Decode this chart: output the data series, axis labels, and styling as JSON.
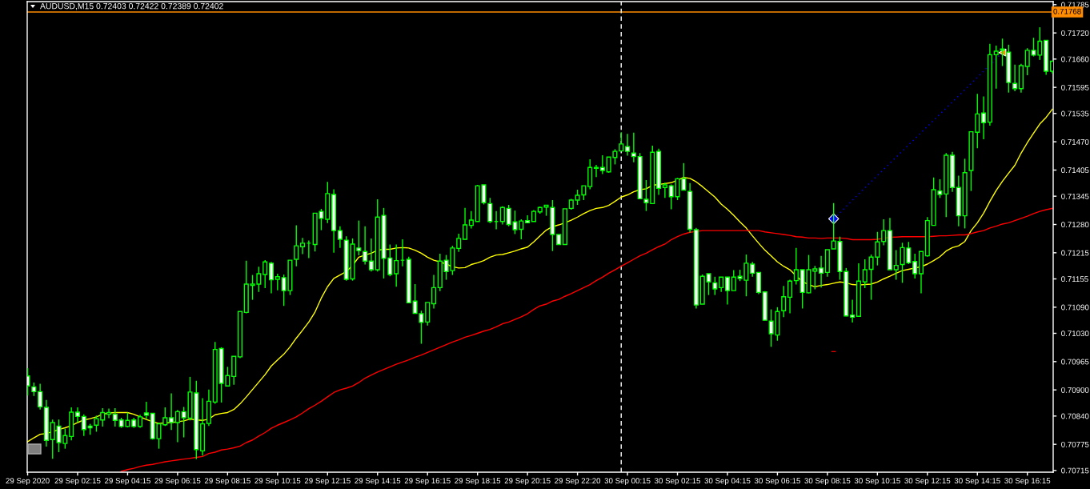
{
  "chart_data": {
    "type": "candlestick",
    "title": "AUDUSD,M15 0.72403 0.72422 0.72389 0.72402",
    "color": "#00ff00",
    "x": [
      "2020-09-29T00:15",
      "2020-09-29T00:30",
      "2020-09-29T00:45",
      "2020-09-29T01:00",
      "2020-09-29T01:15",
      "2020-09-29T01:30",
      "2020-09-29T01:45",
      "2020-09-29T02:00",
      "2020-09-29T02:15",
      "2020-09-29T02:30",
      "2020-09-29T02:45",
      "2020-09-29T03:00",
      "2020-09-29T03:15",
      "2020-09-29T03:30",
      "2020-09-29T03:45",
      "2020-09-29T04:00",
      "2020-09-29T04:15",
      "2020-09-29T04:30",
      "2020-09-29T04:45",
      "2020-09-29T05:00",
      "2020-09-29T05:15",
      "2020-09-29T05:30",
      "2020-09-29T05:45",
      "2020-09-29T06:00",
      "2020-09-29T06:15",
      "2020-09-29T06:30",
      "2020-09-29T06:45",
      "2020-09-29T07:00",
      "2020-09-29T07:15",
      "2020-09-29T07:30",
      "2020-09-29T07:45",
      "2020-09-29T08:00",
      "2020-09-29T08:15",
      "2020-09-29T08:30",
      "2020-09-29T08:45",
      "2020-09-29T09:00",
      "2020-09-29T09:15",
      "2020-09-29T09:30",
      "2020-09-29T09:45",
      "2020-09-29T10:00",
      "2020-09-29T10:15",
      "2020-09-29T10:30",
      "2020-09-29T10:45",
      "2020-09-29T11:00",
      "2020-09-29T11:15",
      "2020-09-29T11:30",
      "2020-09-29T11:45",
      "2020-09-29T12:00",
      "2020-09-29T12:15",
      "2020-09-29T12:30",
      "2020-09-29T12:45",
      "2020-09-29T13:00",
      "2020-09-29T13:15",
      "2020-09-29T13:30",
      "2020-09-29T13:45",
      "2020-09-29T14:00",
      "2020-09-29T14:15",
      "2020-09-29T14:30",
      "2020-09-29T14:45",
      "2020-09-29T15:00",
      "2020-09-29T15:15",
      "2020-09-29T15:30",
      "2020-09-29T15:45",
      "2020-09-29T16:00",
      "2020-09-29T16:15",
      "2020-09-29T16:30",
      "2020-09-29T16:45",
      "2020-09-29T17:00",
      "2020-09-29T17:15",
      "2020-09-29T17:30",
      "2020-09-29T17:45",
      "2020-09-29T18:00",
      "2020-09-29T18:15",
      "2020-09-29T18:30",
      "2020-09-29T18:45",
      "2020-09-29T19:00",
      "2020-09-29T19:15",
      "2020-09-29T19:30",
      "2020-09-29T19:45",
      "2020-09-29T20:00",
      "2020-09-29T20:15",
      "2020-09-29T20:30",
      "2020-09-29T20:45",
      "2020-09-29T21:00",
      "2020-09-29T21:15",
      "2020-09-29T21:30",
      "2020-09-29T21:45",
      "2020-09-29T22:00",
      "2020-09-29T22:15",
      "2020-09-29T22:30",
      "2020-09-29T22:45",
      "2020-09-29T23:00",
      "2020-09-29T23:15",
      "2020-09-29T23:30",
      "2020-09-29T23:45",
      "2020-09-30T00:00",
      "2020-09-30T00:15",
      "2020-09-30T00:30",
      "2020-09-30T00:45",
      "2020-09-30T01:00",
      "2020-09-30T01:15",
      "2020-09-30T01:30",
      "2020-09-30T01:45",
      "2020-09-30T02:00",
      "2020-09-30T02:15",
      "2020-09-30T02:30",
      "2020-09-30T02:45",
      "2020-09-30T03:00",
      "2020-09-30T03:15",
      "2020-09-30T03:30",
      "2020-09-30T03:45",
      "2020-09-30T04:00",
      "2020-09-30T04:15",
      "2020-09-30T04:30",
      "2020-09-30T04:45",
      "2020-09-30T05:00",
      "2020-09-30T05:15",
      "2020-09-30T05:30",
      "2020-09-30T05:45",
      "2020-09-30T06:00",
      "2020-09-30T06:15",
      "2020-09-30T06:30",
      "2020-09-30T06:45",
      "2020-09-30T07:00",
      "2020-09-30T07:15",
      "2020-09-30T07:30",
      "2020-09-30T07:45",
      "2020-09-30T08:00",
      "2020-09-30T08:15",
      "2020-09-30T08:30",
      "2020-09-30T08:45",
      "2020-09-30T09:00",
      "2020-09-30T09:15",
      "2020-09-30T09:30",
      "2020-09-30T09:45",
      "2020-09-30T10:00",
      "2020-09-30T10:15",
      "2020-09-30T10:30",
      "2020-09-30T10:45",
      "2020-09-30T11:00",
      "2020-09-30T11:15",
      "2020-09-30T11:30",
      "2020-09-30T11:45",
      "2020-09-30T12:00",
      "2020-09-30T12:15",
      "2020-09-30T12:30",
      "2020-09-30T12:45",
      "2020-09-30T13:00",
      "2020-09-30T13:15",
      "2020-09-30T13:30",
      "2020-09-30T13:45",
      "2020-09-30T14:00",
      "2020-09-30T14:15",
      "2020-09-30T14:30",
      "2020-09-30T14:45",
      "2020-09-30T15:00",
      "2020-09-30T15:15",
      "2020-09-30T15:30",
      "2020-09-30T15:45",
      "2020-09-30T16:00",
      "2020-09-30T16:15",
      "2020-09-30T16:30",
      "2020-09-30T16:45",
      "2020-09-30T17:00",
      "2020-09-30T17:15"
    ],
    "ohlc": [
      [
        0.70932,
        0.7095,
        0.70887,
        0.70909
      ],
      [
        0.70907,
        0.70917,
        0.70886,
        0.70896
      ],
      [
        0.70896,
        0.70914,
        0.70855,
        0.70861
      ],
      [
        0.7086,
        0.70877,
        0.7077,
        0.70784
      ],
      [
        0.70786,
        0.70832,
        0.70742,
        0.70825
      ],
      [
        0.70817,
        0.70832,
        0.70757,
        0.70779
      ],
      [
        0.70777,
        0.70811,
        0.70765,
        0.70795
      ],
      [
        0.70793,
        0.7086,
        0.70784,
        0.70849
      ],
      [
        0.70849,
        0.7086,
        0.70825,
        0.70839
      ],
      [
        0.70839,
        0.70844,
        0.70794,
        0.70809
      ],
      [
        0.70817,
        0.70822,
        0.70797,
        0.70813
      ],
      [
        0.70819,
        0.70841,
        0.70804,
        0.70834
      ],
      [
        0.70831,
        0.70858,
        0.70816,
        0.70848
      ],
      [
        0.70844,
        0.70857,
        0.70835,
        0.70848
      ],
      [
        0.70844,
        0.70858,
        0.70816,
        0.7083
      ],
      [
        0.70831,
        0.70836,
        0.70813,
        0.70816
      ],
      [
        0.70816,
        0.70848,
        0.70814,
        0.7083
      ],
      [
        0.70831,
        0.70836,
        0.70813,
        0.70816
      ],
      [
        0.70816,
        0.70843,
        0.70813,
        0.70838
      ],
      [
        0.70847,
        0.70873,
        0.70833,
        0.70842
      ],
      [
        0.70846,
        0.70847,
        0.70786,
        0.70788
      ],
      [
        0.70788,
        0.70825,
        0.70765,
        0.70822
      ],
      [
        0.7082,
        0.7086,
        0.70817,
        0.70836
      ],
      [
        0.70836,
        0.70892,
        0.70808,
        0.70825
      ],
      [
        0.70825,
        0.70854,
        0.7078,
        0.7085
      ],
      [
        0.7085,
        0.70861,
        0.70791,
        0.70836
      ],
      [
        0.70835,
        0.7093,
        0.7083,
        0.70895
      ],
      [
        0.70893,
        0.70921,
        0.70741,
        0.70763
      ],
      [
        0.7076,
        0.70881,
        0.70749,
        0.70822
      ],
      [
        0.70823,
        0.70901,
        0.70817,
        0.70874
      ],
      [
        0.70872,
        0.7101,
        0.70868,
        0.70993
      ],
      [
        0.70995,
        0.70998,
        0.70871,
        0.70915
      ],
      [
        0.70909,
        0.70953,
        0.70908,
        0.70933
      ],
      [
        0.70931,
        0.70977,
        0.70912,
        0.70977
      ],
      [
        0.70976,
        0.7108,
        0.70973,
        0.7108
      ],
      [
        0.71078,
        0.71197,
        0.71076,
        0.71143
      ],
      [
        0.7114,
        0.71164,
        0.71107,
        0.71143
      ],
      [
        0.71143,
        0.71183,
        0.71125,
        0.71167
      ],
      [
        0.71165,
        0.71198,
        0.71134,
        0.71194
      ],
      [
        0.71191,
        0.71194,
        0.71122,
        0.71153
      ],
      [
        0.71154,
        0.71167,
        0.71129,
        0.7116
      ],
      [
        0.71158,
        0.71165,
        0.71093,
        0.71128
      ],
      [
        0.71128,
        0.71198,
        0.71118,
        0.71198
      ],
      [
        0.712,
        0.71278,
        0.71184,
        0.71231
      ],
      [
        0.71229,
        0.71249,
        0.71212,
        0.71237
      ],
      [
        0.71237,
        0.71243,
        0.71203,
        0.71237
      ],
      [
        0.71234,
        0.71306,
        0.71218,
        0.71306
      ],
      [
        0.7131,
        0.71316,
        0.71267,
        0.71294
      ],
      [
        0.71292,
        0.71378,
        0.71283,
        0.71351
      ],
      [
        0.71349,
        0.71361,
        0.71215,
        0.71266
      ],
      [
        0.71266,
        0.71276,
        0.71226,
        0.71246
      ],
      [
        0.71244,
        0.71253,
        0.71151,
        0.71154
      ],
      [
        0.71155,
        0.71248,
        0.71151,
        0.71235
      ],
      [
        0.71226,
        0.71289,
        0.71209,
        0.7122
      ],
      [
        0.71218,
        0.71276,
        0.71188,
        0.71196
      ],
      [
        0.71196,
        0.71248,
        0.71172,
        0.71176
      ],
      [
        0.71176,
        0.71338,
        0.71172,
        0.71297
      ],
      [
        0.71301,
        0.71318,
        0.71156,
        0.71202
      ],
      [
        0.71203,
        0.71234,
        0.71161,
        0.71165
      ],
      [
        0.71167,
        0.71234,
        0.71137,
        0.71197
      ],
      [
        0.71198,
        0.71246,
        0.71184,
        0.71198
      ],
      [
        0.712,
        0.71206,
        0.71099,
        0.711
      ],
      [
        0.71104,
        0.71143,
        0.71076,
        0.71076
      ],
      [
        0.71075,
        0.71082,
        0.71006,
        0.71055
      ],
      [
        0.71056,
        0.71101,
        0.71048,
        0.71101
      ],
      [
        0.71098,
        0.71164,
        0.71087,
        0.71135
      ],
      [
        0.71135,
        0.71213,
        0.71127,
        0.71196
      ],
      [
        0.71198,
        0.7121,
        0.71153,
        0.71172
      ],
      [
        0.71174,
        0.71231,
        0.71164,
        0.71226
      ],
      [
        0.71225,
        0.71259,
        0.71217,
        0.71248
      ],
      [
        0.71246,
        0.71318,
        0.71245,
        0.71279
      ],
      [
        0.71278,
        0.71311,
        0.71271,
        0.7129
      ],
      [
        0.71287,
        0.71371,
        0.71287,
        0.71369
      ],
      [
        0.71371,
        0.71371,
        0.71326,
        0.7133
      ],
      [
        0.71328,
        0.71341,
        0.71283,
        0.71287
      ],
      [
        0.71287,
        0.71311,
        0.71269,
        0.71287
      ],
      [
        0.71287,
        0.71322,
        0.7128,
        0.71319
      ],
      [
        0.71317,
        0.71325,
        0.71276,
        0.7128
      ],
      [
        0.71286,
        0.71312,
        0.71258,
        0.71268
      ],
      [
        0.71269,
        0.71292,
        0.71246,
        0.71288
      ],
      [
        0.71289,
        0.71301,
        0.71284,
        0.71284
      ],
      [
        0.71287,
        0.71313,
        0.71287,
        0.7131
      ],
      [
        0.71309,
        0.71321,
        0.71305,
        0.71319
      ],
      [
        0.7132,
        0.71325,
        0.713,
        0.71324
      ],
      [
        0.71319,
        0.71336,
        0.71219,
        0.71257
      ],
      [
        0.71257,
        0.71257,
        0.71234,
        0.71234
      ],
      [
        0.71234,
        0.71316,
        0.71234,
        0.71316
      ],
      [
        0.71317,
        0.71339,
        0.71314,
        0.71336
      ],
      [
        0.71336,
        0.7136,
        0.71325,
        0.71347
      ],
      [
        0.71348,
        0.71369,
        0.71336,
        0.71369
      ],
      [
        0.71367,
        0.7143,
        0.71361,
        0.71411
      ],
      [
        0.71409,
        0.71417,
        0.71389,
        0.71411
      ],
      [
        0.71411,
        0.71439,
        0.71396,
        0.71404
      ],
      [
        0.71401,
        0.71435,
        0.71399,
        0.71435
      ],
      [
        0.71434,
        0.71453,
        0.71418,
        0.71448
      ],
      [
        0.71449,
        0.71492,
        0.71448,
        0.71465
      ],
      [
        0.71459,
        0.71488,
        0.71438,
        0.71448
      ],
      [
        0.71444,
        0.71491,
        0.71423,
        0.71436
      ],
      [
        0.71436,
        0.71444,
        0.71339,
        0.71339
      ],
      [
        0.71338,
        0.71382,
        0.71311,
        0.7133
      ],
      [
        0.71328,
        0.71461,
        0.71328,
        0.71446
      ],
      [
        0.71448,
        0.71454,
        0.71348,
        0.71363
      ],
      [
        0.71365,
        0.71376,
        0.71341,
        0.71371
      ],
      [
        0.71369,
        0.71372,
        0.71315,
        0.71344
      ],
      [
        0.71344,
        0.71387,
        0.71336,
        0.71385
      ],
      [
        0.71385,
        0.71421,
        0.71359,
        0.71359
      ],
      [
        0.71356,
        0.71375,
        0.71261,
        0.71269
      ],
      [
        0.71268,
        0.71272,
        0.71087,
        0.71095
      ],
      [
        0.71097,
        0.71165,
        0.71097,
        0.71161
      ],
      [
        0.71167,
        0.71167,
        0.71118,
        0.71148
      ],
      [
        0.71146,
        0.7116,
        0.71118,
        0.71132
      ],
      [
        0.71135,
        0.71159,
        0.71125,
        0.71159
      ],
      [
        0.71159,
        0.71159,
        0.71096,
        0.71128
      ],
      [
        0.71128,
        0.71175,
        0.71128,
        0.71159
      ],
      [
        0.71161,
        0.71176,
        0.7115,
        0.71156
      ],
      [
        0.71152,
        0.71211,
        0.71115,
        0.71191
      ],
      [
        0.71189,
        0.71194,
        0.7116,
        0.71168
      ],
      [
        0.7117,
        0.7117,
        0.7112,
        0.71124
      ],
      [
        0.71125,
        0.71127,
        0.7106,
        0.7106
      ],
      [
        0.71058,
        0.71085,
        0.70999,
        0.71029
      ],
      [
        0.71026,
        0.7109,
        0.71013,
        0.7108
      ],
      [
        0.71082,
        0.71139,
        0.71067,
        0.71114
      ],
      [
        0.71113,
        0.71153,
        0.71076,
        0.7115
      ],
      [
        0.71151,
        0.71226,
        0.71142,
        0.71176
      ],
      [
        0.71176,
        0.71176,
        0.71087,
        0.71124
      ],
      [
        0.71123,
        0.7121,
        0.71122,
        0.71176
      ],
      [
        0.71173,
        0.71185,
        0.71131,
        0.71178
      ],
      [
        0.7118,
        0.71208,
        0.71135,
        0.71168
      ],
      [
        0.7117,
        0.71222,
        0.7116,
        0.71222
      ],
      [
        0.71224,
        0.71329,
        0.71224,
        0.71242
      ],
      [
        0.71241,
        0.71252,
        0.71153,
        0.71172
      ],
      [
        0.71172,
        0.7118,
        0.71069,
        0.7107
      ],
      [
        0.71072,
        0.71107,
        0.71055,
        0.71067
      ],
      [
        0.71069,
        0.71191,
        0.71069,
        0.7115
      ],
      [
        0.71148,
        0.712,
        0.71134,
        0.71176
      ],
      [
        0.71177,
        0.71211,
        0.71107,
        0.71205
      ],
      [
        0.71205,
        0.71263,
        0.71186,
        0.7124
      ],
      [
        0.71241,
        0.71292,
        0.71232,
        0.71266
      ],
      [
        0.71266,
        0.71295,
        0.71176,
        0.71176
      ],
      [
        0.71176,
        0.71221,
        0.71153,
        0.71186
      ],
      [
        0.71188,
        0.71238,
        0.71146,
        0.71227
      ],
      [
        0.71226,
        0.7124,
        0.71189,
        0.71192
      ],
      [
        0.71195,
        0.71213,
        0.71156,
        0.71167
      ],
      [
        0.71167,
        0.71218,
        0.71122,
        0.71218
      ],
      [
        0.71208,
        0.71297,
        0.71206,
        0.71289
      ],
      [
        0.71278,
        0.71388,
        0.71278,
        0.7136
      ],
      [
        0.71357,
        0.71384,
        0.71341,
        0.71349
      ],
      [
        0.7135,
        0.71444,
        0.71297,
        0.71439
      ],
      [
        0.71439,
        0.71447,
        0.71355,
        0.71365
      ],
      [
        0.71365,
        0.71392,
        0.71276,
        0.713
      ],
      [
        0.713,
        0.71431,
        0.71271,
        0.71399
      ],
      [
        0.71404,
        0.71493,
        0.71357,
        0.71493
      ],
      [
        0.71492,
        0.7158,
        0.71455,
        0.71534
      ],
      [
        0.71536,
        0.71574,
        0.71476,
        0.71514
      ],
      [
        0.71515,
        0.71695,
        0.71507,
        0.7167
      ],
      [
        0.7167,
        0.71691,
        0.71592,
        0.71678
      ],
      [
        0.71683,
        0.71707,
        0.71644,
        0.7168
      ],
      [
        0.71676,
        0.71693,
        0.71583,
        0.71606
      ],
      [
        0.71604,
        0.71647,
        0.71586,
        0.71592
      ],
      [
        0.71592,
        0.71649,
        0.71583,
        0.71645
      ],
      [
        0.71643,
        0.71685,
        0.71623,
        0.7168
      ],
      [
        0.7168,
        0.71709,
        0.71666,
        0.71669
      ],
      [
        0.71669,
        0.71733,
        0.71658,
        0.71701
      ],
      [
        0.71703,
        0.71703,
        0.71624,
        0.71632
      ],
      [
        0.71632,
        0.71656,
        0.71627,
        0.71655
      ]
    ],
    "colors": [
      "#ffffff",
      "#ffffff",
      "#ffffff",
      "#ffffff",
      "#000000",
      "#ffffff",
      "#000000",
      "#000000",
      "#ffffff",
      "#ffffff",
      "#ffffff",
      "#000000",
      "#000000",
      "#000000",
      "#ffffff",
      "#ffffff",
      "#000000",
      "#ffffff",
      "#000000",
      "#ffffff",
      "#ffffff",
      "#000000",
      "#000000",
      "#ffffff",
      "#000000",
      "#ffffff",
      "#000000",
      "#ffffff",
      "#000000",
      "#000000",
      "#000000",
      "#ffffff",
      "#000000",
      "#000000",
      "#000000",
      "#000000",
      "#000000",
      "#000000",
      "#000000",
      "#ffffff",
      "#000000",
      "#ffffff",
      "#000000",
      "#000000",
      "#000000",
      "#00ff00",
      "#000000",
      "#ffffff",
      "#000000",
      "#ffffff",
      "#ffffff",
      "#ffffff",
      "#000000",
      "#ffffff",
      "#ffffff",
      "#ffffff",
      "#000000",
      "#ffffff",
      "#ffffff",
      "#000000",
      "#00ff00",
      "#ffffff",
      "#ffffff",
      "#ffffff",
      "#000000",
      "#000000",
      "#000000",
      "#ffffff",
      "#000000",
      "#000000",
      "#000000",
      "#000000",
      "#000000",
      "#ffffff",
      "#ffffff",
      "#00ff00",
      "#000000",
      "#ffffff",
      "#ffffff",
      "#000000",
      "#ffffff",
      "#000000",
      "#000000",
      "#000000",
      "#ffffff",
      "#ffffff",
      "#000000",
      "#000000",
      "#000000",
      "#000000",
      "#000000",
      "#000000",
      "#ffffff",
      "#000000",
      "#000000",
      "#000000",
      "#ffffff",
      "#ffffff",
      "#ffffff",
      "#ffffff",
      "#000000",
      "#ffffff",
      "#000000",
      "#ffffff",
      "#000000",
      "#ffffff",
      "#ffffff",
      "#ffffff",
      "#000000",
      "#ffffff",
      "#ffffff",
      "#000000",
      "#ffffff",
      "#000000",
      "#ffffff",
      "#000000",
      "#ffffff",
      "#ffffff",
      "#ffffff",
      "#ffffff",
      "#000000",
      "#000000",
      "#000000",
      "#000000",
      "#ffffff",
      "#000000",
      "#000000",
      "#ffffff",
      "#000000",
      "#000000",
      "#ffffff",
      "#ffffff",
      "#ffffff",
      "#000000",
      "#000000",
      "#000000",
      "#000000",
      "#000000",
      "#ffffff",
      "#000000",
      "#000000",
      "#ffffff",
      "#ffffff",
      "#000000",
      "#000000",
      "#000000",
      "#ffffff",
      "#000000",
      "#ffffff",
      "#ffffff",
      "#000000",
      "#000000",
      "#000000",
      "#ffffff",
      "#000000",
      "#000000",
      "#ffffff",
      "#ffffff",
      "#ffffff",
      "#000000",
      "#000000",
      "#ffffff",
      "#000000",
      "#ffffff",
      "#000000"
    ],
    "series": [
      {
        "type": "line",
        "color": "#ffff00",
        "values": [
          0.70781,
          0.7079,
          0.70798,
          0.708,
          0.70804,
          0.70809,
          0.70813,
          0.70818,
          0.70825,
          0.70831,
          0.70834,
          0.70838,
          0.70844,
          0.70847,
          0.70848,
          0.70848,
          0.70848,
          0.70844,
          0.70838,
          0.70832,
          0.70827,
          0.70823,
          0.70824,
          0.70825,
          0.70827,
          0.70829,
          0.70833,
          0.70831,
          0.7083,
          0.70833,
          0.70843,
          0.70846,
          0.70848,
          0.70855,
          0.70868,
          0.70884,
          0.70901,
          0.70918,
          0.70935,
          0.70955,
          0.70969,
          0.70982,
          0.70999,
          0.71019,
          0.71037,
          0.71056,
          0.71079,
          0.71111,
          0.71137,
          0.71156,
          0.71164,
          0.71172,
          0.71186,
          0.71205,
          0.7121,
          0.71214,
          0.71221,
          0.71223,
          0.71223,
          0.71226,
          0.71227,
          0.71226,
          0.71221,
          0.71214,
          0.71205,
          0.71198,
          0.71194,
          0.71189,
          0.71183,
          0.7118,
          0.71181,
          0.71188,
          0.71192,
          0.71197,
          0.71205,
          0.7121,
          0.71211,
          0.71215,
          0.71219,
          0.71224,
          0.71228,
          0.7124,
          0.71254,
          0.71267,
          0.71275,
          0.71279,
          0.71284,
          0.7129,
          0.71297,
          0.71305,
          0.71312,
          0.71317,
          0.71319,
          0.71324,
          0.71333,
          0.71343,
          0.71348,
          0.71355,
          0.7136,
          0.71362,
          0.7137,
          0.71372,
          0.71374,
          0.71376,
          0.71382,
          0.71388,
          0.71386,
          0.71378,
          0.71367,
          0.71355,
          0.71343,
          0.71327,
          0.71315,
          0.71301,
          0.71286,
          0.71272,
          0.71254,
          0.71237,
          0.71221,
          0.71208,
          0.71194,
          0.71184,
          0.71176,
          0.71162,
          0.71149,
          0.71142,
          0.71137,
          0.7114,
          0.71142,
          0.71145,
          0.71148,
          0.71146,
          0.71142,
          0.71141,
          0.71142,
          0.71143,
          0.71148,
          0.71155,
          0.71161,
          0.71168,
          0.71174,
          0.71177,
          0.7118,
          0.71183,
          0.71189,
          0.71197,
          0.71206,
          0.71219,
          0.71227,
          0.71231,
          0.71241,
          0.71266,
          0.71284,
          0.71306,
          0.71333,
          0.71358,
          0.71379,
          0.71398,
          0.71416,
          0.71444,
          0.71468,
          0.7149,
          0.71511,
          0.71526,
          0.71545
        ]
      },
      {
        "type": "line",
        "color": "#ff0000",
        "values": [
          null,
          null,
          null,
          null,
          null,
          null,
          null,
          null,
          null,
          null,
          null,
          null,
          null,
          null,
          null,
          0.70713,
          0.70717,
          0.7072,
          0.70724,
          0.70727,
          0.70729,
          0.70732,
          0.70735,
          0.70737,
          0.70739,
          0.70741,
          0.70743,
          0.70745,
          0.70747,
          0.70754,
          0.70757,
          0.70762,
          0.70764,
          0.70767,
          0.70771,
          0.70779,
          0.70785,
          0.70794,
          0.70802,
          0.70812,
          0.70819,
          0.70825,
          0.70831,
          0.70838,
          0.70847,
          0.70857,
          0.70865,
          0.70874,
          0.70884,
          0.70894,
          0.709,
          0.70904,
          0.70909,
          0.70917,
          0.70927,
          0.70934,
          0.70941,
          0.70947,
          0.70953,
          0.70959,
          0.70964,
          0.70969,
          0.70975,
          0.7098,
          0.70986,
          0.70992,
          0.70998,
          0.71004,
          0.7101,
          0.71015,
          0.71021,
          0.71025,
          0.7103,
          0.71035,
          0.71039,
          0.71045,
          0.71052,
          0.71056,
          0.71062,
          0.71068,
          0.71075,
          0.71085,
          0.71093,
          0.71097,
          0.71104,
          0.71108,
          0.71115,
          0.71121,
          0.71128,
          0.71135,
          0.71142,
          0.71151,
          0.71159,
          0.71168,
          0.71176,
          0.71184,
          0.71192,
          0.712,
          0.71208,
          0.71214,
          0.71222,
          0.71229,
          0.71235,
          0.71245,
          0.71252,
          0.71258,
          0.71262,
          0.71264,
          0.71266,
          0.71266,
          0.71266,
          0.71266,
          0.71266,
          0.71266,
          0.71266,
          0.71266,
          0.71266,
          0.71266,
          0.71263,
          0.71261,
          0.71259,
          0.71257,
          0.71255,
          0.71252,
          0.71251,
          0.71249,
          0.71249,
          0.71248,
          0.71249,
          0.71249,
          0.71249,
          0.71248,
          0.71245,
          0.71245,
          0.71245,
          0.71245,
          0.71246,
          0.71248,
          0.71251,
          0.71251,
          0.71252,
          0.71252,
          0.71252,
          0.71252,
          0.71252,
          0.71253,
          0.71254,
          0.71254,
          0.71255,
          0.71256,
          0.71256,
          0.71259,
          0.71263,
          0.71266,
          0.71272,
          0.71276,
          0.71281,
          0.71284,
          0.71289,
          0.71294,
          0.71299,
          0.71305,
          0.7131,
          0.71314,
          0.71317
        ]
      },
      {
        "type": "line",
        "color": "#0000ff",
        "line_style": "dotted",
        "x": [
          "2020-09-30T08:30",
          "2020-09-30T15:15"
        ],
        "values": [
          0.71293,
          0.71675
        ]
      },
      {
        "type": "scatter",
        "color": "#0000ff",
        "marker": "diamond",
        "x": [
          "2020-09-30T08:30"
        ],
        "values": [
          0.71293
        ]
      },
      {
        "type": "scatter",
        "color": "#ff8c00",
        "marker": "triangle",
        "x": [
          "2020-09-30T15:15"
        ],
        "values": [
          0.71675
        ]
      },
      {
        "type": "line",
        "color": "#e00000",
        "x": [
          "2020-09-30T08:26",
          "2020-09-30T08:34"
        ],
        "values": [
          0.70988,
          0.70988
        ]
      }
    ],
    "ref_lines": [
      {
        "axis": "y",
        "value": 0.71768,
        "label": "0.71768",
        "color": "#ff8c00"
      },
      {
        "axis": "x",
        "value": "2020-09-30T00:00",
        "line_style": "dashed",
        "color": "#ffffff"
      }
    ],
    "xlim": [
      "2020-09-29T00:14",
      "2020-09-30T17:17"
    ],
    "xticks": [
      {
        "value": "2020-09-29T00:15",
        "label": "29 Sep 2020"
      },
      {
        "value": "2020-09-29T02:15",
        "label": "29 Sep 02:15"
      },
      {
        "value": "2020-09-29T04:15",
        "label": "29 Sep 04:15"
      },
      {
        "value": "2020-09-29T06:15",
        "label": "29 Sep 06:15"
      },
      {
        "value": "2020-09-29T08:15",
        "label": "29 Sep 08:15"
      },
      {
        "value": "2020-09-29T10:15",
        "label": "29 Sep 10:15"
      },
      {
        "value": "2020-09-29T12:15",
        "label": "29 Sep 12:15"
      },
      {
        "value": "2020-09-29T14:15",
        "label": "29 Sep 14:15"
      },
      {
        "value": "2020-09-29T16:15",
        "label": "29 Sep 16:15"
      },
      {
        "value": "2020-09-29T18:15",
        "label": "29 Sep 18:15"
      },
      {
        "value": "2020-09-29T20:15",
        "label": "29 Sep 20:15"
      },
      {
        "value": "2020-09-29T22:15",
        "label": "29 Sep 22:20"
      },
      {
        "value": "2020-09-30T00:15",
        "label": "30 Sep 00:15"
      },
      {
        "value": "2020-09-30T02:15",
        "label": "30 Sep 02:15"
      },
      {
        "value": "2020-09-30T04:15",
        "label": "30 Sep 04:15"
      },
      {
        "value": "2020-09-30T06:15",
        "label": "30 Sep 06:15"
      },
      {
        "value": "2020-09-30T08:15",
        "label": "30 Sep 08:15"
      },
      {
        "value": "2020-09-30T10:15",
        "label": "30 Sep 10:15"
      },
      {
        "value": "2020-09-30T12:15",
        "label": "30 Sep 12:15"
      },
      {
        "value": "2020-09-30T14:15",
        "label": "30 Sep 14:15"
      },
      {
        "value": "2020-09-30T16:15",
        "label": "30 Sep 16:15"
      }
    ],
    "ylim": [
      0.70711,
      0.71792
    ],
    "yticks": [
      0.71785,
      {
        "value": 0.7172,
        "label": "0.71720"
      },
      {
        "value": 0.7166,
        "label": "0.71660"
      },
      0.71595,
      0.71535,
      {
        "value": 0.7147,
        "label": "0.71470"
      },
      0.71405,
      0.71345,
      {
        "value": 0.7128,
        "label": "0.71280"
      },
      0.71215,
      0.71155,
      {
        "value": 0.7109,
        "label": "0.71090"
      },
      {
        "value": 0.7103,
        "label": "0.71030"
      },
      0.70965,
      {
        "value": 0.709,
        "label": "0.70900"
      },
      {
        "value": 0.7084,
        "label": "0.70840"
      },
      0.70775,
      0.70715
    ]
  }
}
